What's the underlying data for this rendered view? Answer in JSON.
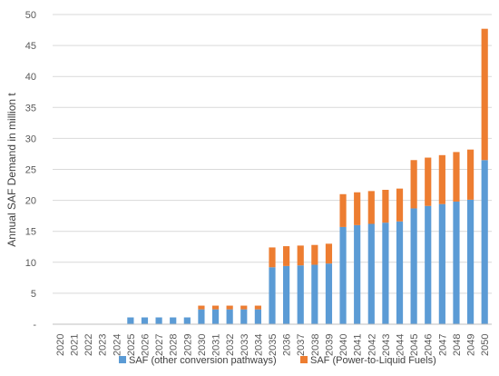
{
  "chart_data": {
    "type": "bar",
    "stacked": true,
    "title": "",
    "xlabel": "",
    "ylabel": "Annual SAF Demand in million t",
    "ylim": [
      0,
      50
    ],
    "yticks": [
      0,
      5,
      10,
      15,
      20,
      25,
      30,
      35,
      40,
      45,
      50
    ],
    "ytick_labels": [
      "-",
      "5",
      "10",
      "15",
      "20",
      "25",
      "30",
      "35",
      "40",
      "45",
      "50"
    ],
    "grid": true,
    "legend_position": "bottom",
    "categories": [
      "2020",
      "2021",
      "2022",
      "2023",
      "2024",
      "2025",
      "2026",
      "2027",
      "2028",
      "2029",
      "2030",
      "2031",
      "2032",
      "2033",
      "2034",
      "2035",
      "2036",
      "2037",
      "2038",
      "2039",
      "2040",
      "2041",
      "2042",
      "2043",
      "2044",
      "2045",
      "2046",
      "2047",
      "2048",
      "2049",
      "2050"
    ],
    "series": [
      {
        "name": "SAF (other conversion pathways)",
        "color": "#5B9BD5",
        "values": [
          0,
          0,
          0,
          0,
          0,
          1.1,
          1.1,
          1.1,
          1.1,
          1.1,
          2.4,
          2.4,
          2.4,
          2.4,
          2.4,
          9.2,
          9.4,
          9.5,
          9.6,
          9.8,
          15.7,
          16.0,
          16.2,
          16.4,
          16.6,
          18.7,
          19.1,
          19.4,
          19.8,
          20.1,
          26.5
        ]
      },
      {
        "name": "SAF (Power-to-Liquid Fuels)",
        "color": "#ED7D31",
        "values": [
          0,
          0,
          0,
          0,
          0,
          0,
          0,
          0,
          0,
          0,
          0.6,
          0.6,
          0.6,
          0.6,
          0.6,
          3.2,
          3.2,
          3.2,
          3.2,
          3.2,
          5.3,
          5.3,
          5.3,
          5.3,
          5.3,
          7.8,
          7.8,
          7.9,
          8.0,
          8.1,
          21.2
        ]
      }
    ]
  }
}
